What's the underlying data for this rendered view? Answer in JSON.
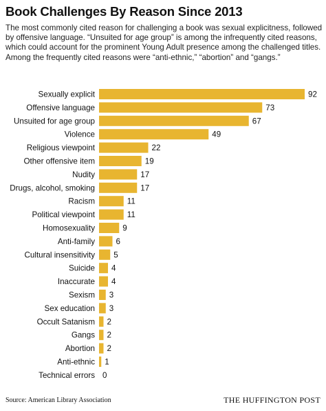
{
  "header": {
    "title": "Book Challenges By Reason Since 2013",
    "subtitle": "The most commonly cited reason for challenging a book was sexual explicitness, followed by offensive language. “Unsuited for age group” is among the infrequently cited reasons, which could account for the prominent Young Adult presence among the challenged titles. Among the frequently cited reasons were “anti-ethnic,” “abortion” and “gangs.”"
  },
  "chart_data": {
    "type": "bar",
    "orientation": "horizontal",
    "categories": [
      "Sexually explicit",
      "Offensive language",
      "Unsuited for age group",
      "Violence",
      "Religious viewpoint",
      "Other offensive item",
      "Nudity",
      "Drugs, alcohol, smoking",
      "Racism",
      "Political viewpoint",
      "Homosexuality",
      "Anti-family",
      "Cultural insensitivity",
      "Suicide",
      "Inaccurate",
      "Sexism",
      "Sex education",
      "Occult Satanism",
      "Gangs",
      "Abortion",
      "Anti-ethnic",
      "Technical errors"
    ],
    "values": [
      92,
      73,
      67,
      49,
      22,
      19,
      17,
      17,
      11,
      11,
      9,
      6,
      5,
      4,
      4,
      3,
      3,
      2,
      2,
      2,
      1,
      0
    ],
    "xlim": [
      0,
      92
    ],
    "grid": false,
    "bar_color": "#E8B530"
  },
  "footer": {
    "source": "Source: American Library Association",
    "brand": "THE HUFFINGTON POST"
  }
}
